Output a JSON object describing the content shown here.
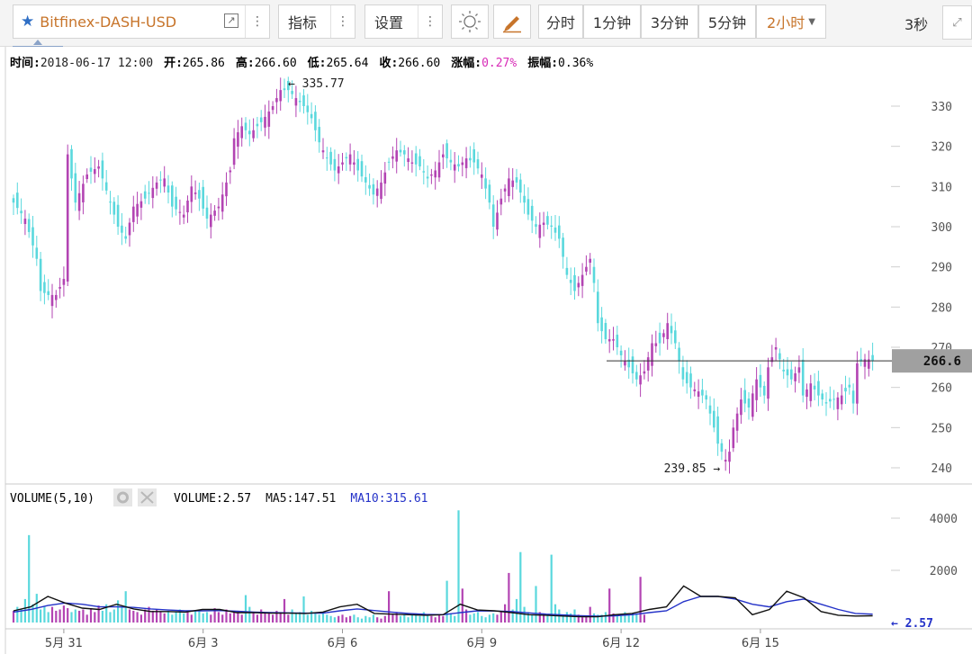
{
  "toolbar": {
    "symbol": "Bitfinex-DASH-USD",
    "indicators_label": "指标",
    "settings_label": "设置",
    "periods": [
      "分时",
      "1分钟",
      "3分钟",
      "5分钟",
      "2小时"
    ],
    "active_period": "2小时",
    "refresh_label": "3秒",
    "icons": {
      "favorite": "star-icon",
      "share": "external-link-icon",
      "more": "vertical-dots-icon",
      "theme": "sun-icon",
      "draw": "pencil-icon",
      "fullscreen": "expand-icon",
      "dropdown": "triangle-down-icon"
    },
    "colors": {
      "accent": "#c7742a",
      "star": "#2f6fc5"
    }
  },
  "info": {
    "time_label": "时间:",
    "time": "2018-06-17 12:00",
    "open_label": "开:",
    "open": "265.86",
    "high_label": "高:",
    "high": "266.60",
    "low_label": "低:",
    "low": "265.64",
    "close_label": "收:",
    "close": "266.60",
    "change_label": "涨幅:",
    "change": "0.27%",
    "amp_label": "振幅:",
    "amp": "0.36%"
  },
  "volume_legend": {
    "title": "VOLUME(5,10)",
    "volume_label": "VOLUME:",
    "volume": "2.57",
    "ma5_label": "MA5:",
    "ma5": "147.51",
    "ma10_label": "MA10:",
    "ma10": "315.61"
  },
  "chart_data": [
    {
      "type": "candlestick",
      "x_ticks": [
        "5月 31",
        "6月 3",
        "6月 6",
        "6月 9",
        "6月 12",
        "6月 15"
      ],
      "x_tick_index": [
        13,
        49,
        85,
        121,
        157,
        193
      ],
      "y_ticks": [
        240,
        250,
        260,
        270,
        280,
        290,
        300,
        310,
        320,
        330
      ],
      "ylim": [
        238,
        339
      ],
      "grid": false,
      "up_color": "#b344b3",
      "down_color": "#5ad8dd",
      "max_label": "335.77",
      "min_label": "239.85",
      "last_price_label": "266.6",
      "last_price": 266.6,
      "anchors": [
        [
          0,
          306
        ],
        [
          3,
          302
        ],
        [
          6,
          292
        ],
        [
          7,
          284
        ],
        [
          9,
          283
        ],
        [
          11,
          283
        ],
        [
          13,
          287
        ],
        [
          14,
          318
        ],
        [
          16,
          306
        ],
        [
          19,
          313
        ],
        [
          22,
          315
        ],
        [
          25,
          306
        ],
        [
          27,
          300
        ],
        [
          29,
          297
        ],
        [
          31,
          305
        ],
        [
          34,
          307
        ],
        [
          37,
          311
        ],
        [
          39,
          312
        ],
        [
          41,
          305
        ],
        [
          44,
          303
        ],
        [
          46,
          310
        ],
        [
          48,
          307
        ],
        [
          50,
          302
        ],
        [
          53,
          305
        ],
        [
          56,
          314
        ],
        [
          57,
          322
        ],
        [
          59,
          325
        ],
        [
          61,
          323
        ],
        [
          64,
          326
        ],
        [
          67,
          330
        ],
        [
          69,
          334
        ],
        [
          71,
          334
        ],
        [
          73,
          332
        ],
        [
          75,
          330
        ],
        [
          77,
          327
        ],
        [
          79,
          321
        ],
        [
          81,
          317
        ],
        [
          83,
          314
        ],
        [
          85,
          316
        ],
        [
          87,
          318
        ],
        [
          89,
          314
        ],
        [
          91,
          311
        ],
        [
          93,
          308
        ],
        [
          95,
          311
        ],
        [
          97,
          316
        ],
        [
          99,
          319
        ],
        [
          101,
          318
        ],
        [
          103,
          316
        ],
        [
          105,
          315
        ],
        [
          107,
          312
        ],
        [
          109,
          314
        ],
        [
          111,
          318
        ],
        [
          113,
          316
        ],
        [
          115,
          315
        ],
        [
          117,
          317
        ],
        [
          119,
          316
        ],
        [
          121,
          313
        ],
        [
          123,
          306
        ],
        [
          124,
          300
        ],
        [
          126,
          307
        ],
        [
          128,
          312
        ],
        [
          130,
          311
        ],
        [
          132,
          306
        ],
        [
          133,
          303
        ],
        [
          135,
          300
        ],
        [
          137,
          301
        ],
        [
          139,
          300
        ],
        [
          141,
          297
        ],
        [
          143,
          288
        ],
        [
          145,
          284
        ],
        [
          147,
          288
        ],
        [
          149,
          292
        ],
        [
          150,
          286
        ],
        [
          151,
          276
        ],
        [
          153,
          272
        ],
        [
          155,
          272
        ],
        [
          157,
          268
        ],
        [
          159,
          265
        ],
        [
          161,
          262
        ],
        [
          163,
          264
        ],
        [
          165,
          271
        ],
        [
          167,
          271
        ],
        [
          169,
          276
        ],
        [
          171,
          271
        ],
        [
          173,
          262
        ],
        [
          175,
          260
        ],
        [
          177,
          259
        ],
        [
          179,
          257
        ],
        [
          181,
          250
        ],
        [
          182,
          246
        ],
        [
          184,
          242
        ],
        [
          185,
          244
        ],
        [
          186,
          250
        ],
        [
          188,
          257
        ],
        [
          190,
          255
        ],
        [
          192,
          262
        ],
        [
          194,
          258
        ],
        [
          195,
          265
        ],
        [
          197,
          270
        ],
        [
          199,
          264
        ],
        [
          201,
          262
        ],
        [
          203,
          265
        ],
        [
          204,
          258
        ],
        [
          206,
          261
        ],
        [
          208,
          258
        ],
        [
          210,
          256
        ],
        [
          212,
          257
        ],
        [
          214,
          258
        ],
        [
          216,
          260
        ],
        [
          217,
          256
        ],
        [
          218,
          266
        ],
        [
          220,
          267
        ],
        [
          222,
          267
        ]
      ],
      "count": 223
    },
    {
      "type": "bar",
      "title": "VOLUME(5,10)",
      "y_ticks": [
        2000,
        4000
      ],
      "ylim": [
        0,
        4700
      ],
      "series": [
        {
          "name": "MA5",
          "color": "#111111",
          "values": [
            450,
            600,
            1000,
            750,
            550,
            500,
            700,
            520,
            420,
            420,
            400,
            500,
            500,
            380,
            380,
            360,
            360,
            350,
            400,
            600,
            700,
            350,
            320,
            300,
            280,
            300,
            700,
            480,
            450,
            380,
            300,
            280,
            250,
            220,
            220,
            300,
            350,
            500,
            600,
            1400,
            1000,
            1000,
            950,
            300,
            500,
            1200,
            950,
            420,
            280,
            250,
            260
          ]
        },
        {
          "name": "MA10",
          "color": "#2432c8",
          "values": [
            400,
            500,
            650,
            750,
            700,
            600,
            600,
            580,
            520,
            480,
            450,
            450,
            460,
            430,
            400,
            380,
            370,
            360,
            360,
            450,
            520,
            460,
            400,
            350,
            310,
            300,
            380,
            450,
            440,
            420,
            370,
            320,
            290,
            260,
            240,
            260,
            300,
            380,
            450,
            800,
            1000,
            1000,
            900,
            700,
            600,
            800,
            900,
            700,
            500,
            350,
            320
          ]
        },
        {
          "name": "VOLUME",
          "values": [
            450,
            600,
            500,
            900,
            3350,
            700,
            1100,
            500,
            600,
            400,
            600,
            450,
            500,
            650,
            550,
            400,
            500,
            450,
            500,
            300,
            550,
            400,
            650,
            450,
            700,
            400,
            500,
            850,
            600,
            1200,
            500,
            450,
            400,
            300,
            500,
            600,
            450,
            500,
            400,
            350,
            450,
            300,
            400,
            500,
            350,
            400,
            300,
            450,
            500,
            350,
            400,
            300,
            550,
            400,
            300,
            500,
            350,
            400,
            450,
            300,
            1050,
            600,
            400,
            300,
            500,
            350,
            400,
            300,
            450,
            400,
            900,
            300,
            500,
            350,
            400,
            1000,
            300,
            450,
            350,
            300,
            400,
            300,
            250,
            200,
            250,
            300,
            200,
            250,
            300,
            200,
            150,
            250,
            200,
            300,
            200,
            150,
            250,
            1200,
            300,
            400,
            250,
            300,
            200,
            300,
            350,
            250,
            400,
            300,
            250,
            200,
            300,
            250,
            1600,
            350,
            250,
            4300,
            1300,
            500,
            300,
            350,
            400,
            250,
            200,
            300,
            350,
            300,
            450,
            700,
            1900,
            500,
            900,
            2700,
            600,
            400,
            300,
            1400,
            400,
            350,
            300,
            2600,
            700,
            500,
            300,
            400,
            350,
            500,
            300,
            200,
            250,
            600,
            350,
            300,
            300,
            400,
            1300,
            350,
            300,
            250,
            400,
            300,
            350,
            300,
            1750,
            300
          ]
        }
      ],
      "last_volume_label": "2.57"
    }
  ]
}
